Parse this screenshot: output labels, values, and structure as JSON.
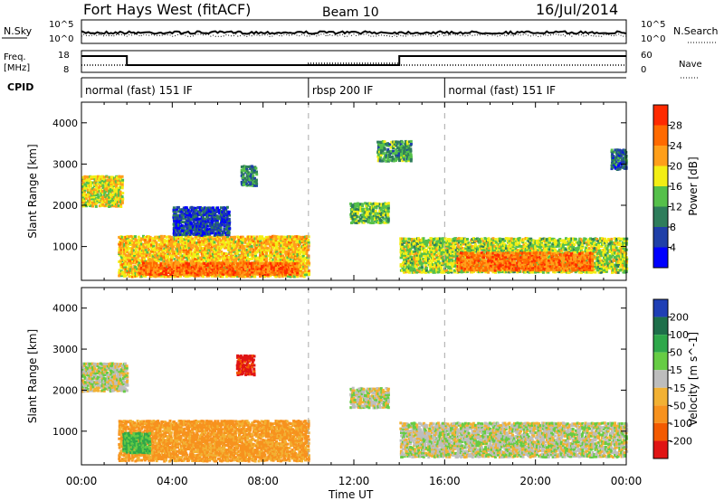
{
  "header": {
    "title": "Fort Hays West (fitACF)",
    "beam": "Beam 10",
    "date": "16/Jul/2014"
  },
  "noise_panel": {
    "left_label": "N.Sky",
    "left_ticks": [
      "10^5",
      "10^0"
    ],
    "right_label": "N.Search",
    "right_ticks": [
      "10^5",
      "10^0"
    ]
  },
  "freq_panel": {
    "left_label_1": "Freq.",
    "left_label_2": "[MHz]",
    "left_ticks": [
      "18",
      "8"
    ],
    "right_label": "Nave",
    "right_ticks": [
      "60",
      "0"
    ]
  },
  "cpid_panel": {
    "label": "CPID",
    "segments": [
      {
        "start_hour": 0,
        "label": "normal (fast) 151 IF"
      },
      {
        "start_hour": 10,
        "label": "rbsp 200 IF"
      },
      {
        "start_hour": 16,
        "label": "normal (fast) 151 IF"
      }
    ]
  },
  "chart_data": [
    {
      "type": "heatmap",
      "name": "power",
      "ylabel": "Slant Range [km]",
      "yticks": [
        "1000",
        "2000",
        "3000",
        "4000"
      ],
      "ylim": [
        180,
        4500
      ],
      "xlim": [
        0,
        24
      ],
      "colorbar": {
        "label": "Power [dB]",
        "tick_labels": [
          "4",
          "8",
          "12",
          "16",
          "20",
          "24",
          "28"
        ],
        "colors": [
          "#0000ff",
          "#1f3fa8",
          "#2e7d5b",
          "#55c04a",
          "#f3ee14",
          "#ff9f1a",
          "#ff6a00",
          "#ff2a00"
        ]
      },
      "regions": [
        {
          "t0": 0.0,
          "t1": 1.8,
          "r0": 2000,
          "r1": 2750,
          "v": 18
        },
        {
          "t0": 1.6,
          "t1": 10.0,
          "r0": 300,
          "r1": 1300,
          "v": 20
        },
        {
          "t0": 2.5,
          "t1": 9.5,
          "r0": 350,
          "r1": 650,
          "v": 26
        },
        {
          "t0": 4.0,
          "t1": 6.5,
          "r0": 1300,
          "r1": 2000,
          "v": 6
        },
        {
          "t0": 7.0,
          "t1": 7.7,
          "r0": 2500,
          "r1": 3000,
          "v": 10
        },
        {
          "t0": 11.8,
          "t1": 13.5,
          "r0": 1600,
          "r1": 2100,
          "v": 14
        },
        {
          "t0": 13.0,
          "t1": 14.5,
          "r0": 3100,
          "r1": 3600,
          "v": 12
        },
        {
          "t0": 14.0,
          "t1": 24.0,
          "r0": 400,
          "r1": 1250,
          "v": 16
        },
        {
          "t0": 16.5,
          "t1": 22.5,
          "r0": 450,
          "r1": 900,
          "v": 25
        },
        {
          "t0": 23.3,
          "t1": 24.0,
          "r0": 2900,
          "r1": 3400,
          "v": 8
        }
      ]
    },
    {
      "type": "heatmap",
      "name": "velocity",
      "ylabel": "Slant Range [km]",
      "yticks": [
        "1000",
        "2000",
        "3000",
        "4000"
      ],
      "ylim": [
        180,
        4500
      ],
      "xlim": [
        0,
        24
      ],
      "colorbar": {
        "label": "Velocity [m s^-1]",
        "tick_labels": [
          "200",
          "100",
          "50",
          "15",
          "-15",
          "-50",
          "-100",
          "-200"
        ],
        "colors": [
          "#1f3fb5",
          "#1e6f4a",
          "#2ea84a",
          "#66cc44",
          "#bdbdbd",
          "#f2b133",
          "#f7921e",
          "#f35a00",
          "#e01414"
        ]
      },
      "regions": [
        {
          "t0": 0.0,
          "t1": 2.0,
          "r0": 2000,
          "r1": 2700,
          "v": 0
        },
        {
          "t0": 1.6,
          "t1": 10.0,
          "r0": 300,
          "r1": 1300,
          "v": -60
        },
        {
          "t0": 1.8,
          "t1": 3.0,
          "r0": 500,
          "r1": 1000,
          "v": 60
        },
        {
          "t0": 6.8,
          "t1": 7.6,
          "r0": 2400,
          "r1": 2900,
          "v": -220
        },
        {
          "t0": 11.8,
          "t1": 13.5,
          "r0": 1600,
          "r1": 2100,
          "v": 0
        },
        {
          "t0": 14.0,
          "t1": 24.0,
          "r0": 400,
          "r1": 1250,
          "v": 0
        }
      ]
    }
  ],
  "xaxis": {
    "label": "Time UT",
    "ticks": [
      "00:00",
      "04:00",
      "08:00",
      "12:00",
      "16:00",
      "20:00",
      "00:00"
    ]
  }
}
